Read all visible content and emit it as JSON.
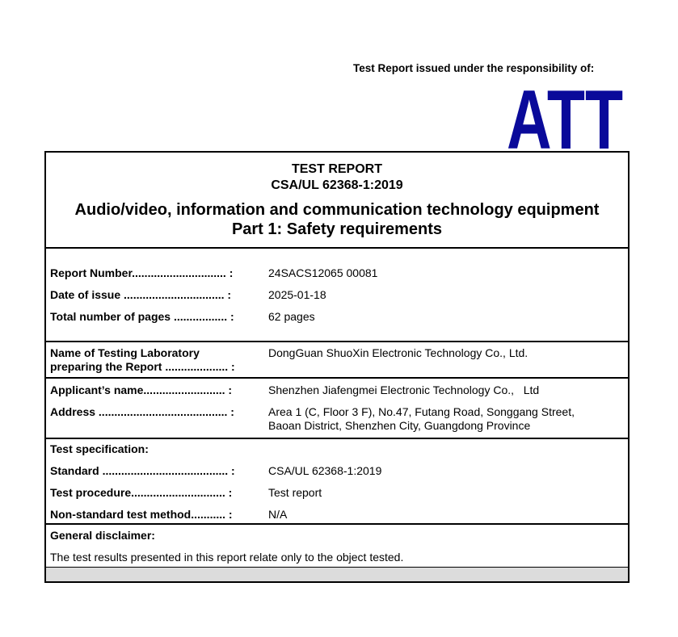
{
  "header": {
    "responsibility": "Test Report issued under the responsibility of:",
    "logo_text": "ATT",
    "logo_color": "#0a0a9a"
  },
  "title": {
    "line1": "TEST REPORT",
    "line2": "CSA/UL 62368-1:2019",
    "line3": "Audio/video, information and communication technology equipment",
    "line4": "Part 1: Safety requirements"
  },
  "report": [
    {
      "label": "Report Number.............................. :",
      "value": "24SACS12065 00081"
    },
    {
      "label": "Date of issue ................................ :",
      "value": "2025-01-18"
    },
    {
      "label": "Total number of pages ................. :",
      "value": "62 pages"
    }
  ],
  "lab": {
    "label1": "Name of Testing Laboratory",
    "label2": "preparing the Report .................... :",
    "value": "DongGuan ShuoXin Electronic Technology Co., Ltd."
  },
  "applicant": [
    {
      "label": "Applicant’s name.......................... :",
      "value": "Shenzhen Jiafengmei Electronic Technology Co.,   Ltd"
    },
    {
      "label": "Address ......................................... :",
      "value": "Area 1 (C, Floor 3 F), No.47, Futang Road, Songgang Street,",
      "value2": "Baoan District, Shenzhen City, Guangdong Province"
    }
  ],
  "spec": {
    "heading": "Test specification:",
    "rows": [
      {
        "label": "Standard ........................................ :",
        "value": "CSA/UL 62368-1:2019"
      },
      {
        "label": "Test procedure.............................. :",
        "value": "Test report"
      },
      {
        "label": "Non-standard test method........... :",
        "value": "N/A"
      }
    ]
  },
  "disclaimer": {
    "heading": "General disclaimer:",
    "text": "The test results presented in this report relate only to the object tested."
  }
}
